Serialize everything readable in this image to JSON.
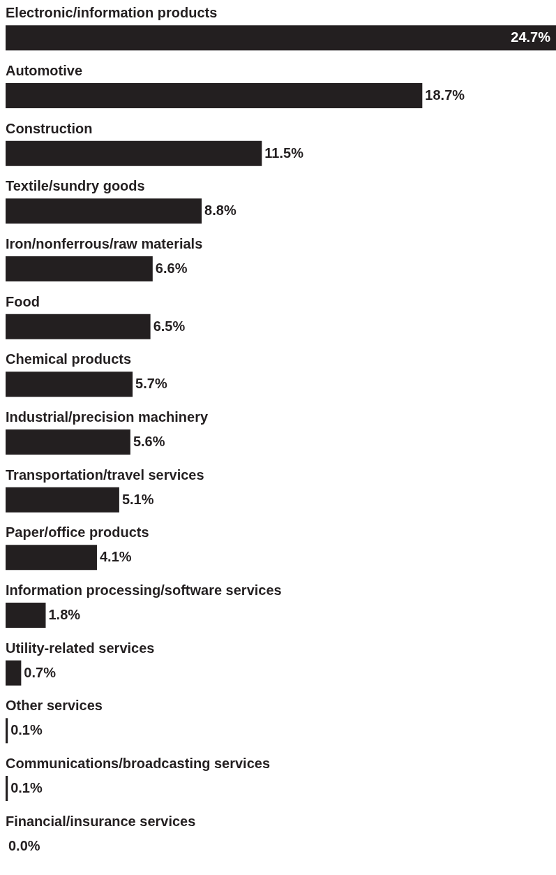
{
  "chart_data": {
    "type": "bar",
    "orientation": "horizontal",
    "color": "#231f20",
    "categories": [
      "Electronic/information products",
      "Automotive",
      "Construction",
      "Textile/sundry goods",
      "Iron/nonferrous/raw materials",
      "Food",
      "Chemical products",
      "Industrial/precision machinery",
      "Transportation/travel services",
      "Paper/office products",
      "Information processing/software services",
      "Utility-related services",
      "Other services",
      "Communications/broadcasting services",
      "Financial/insurance services"
    ],
    "values": [
      24.7,
      18.7,
      11.5,
      8.8,
      6.6,
      6.5,
      5.7,
      5.6,
      5.1,
      4.1,
      1.8,
      0.7,
      0.1,
      0.1,
      0.0
    ],
    "value_labels": [
      "24.7%",
      "18.7%",
      "11.5%",
      "8.8%",
      "6.6%",
      "6.5%",
      "5.7%",
      "5.6%",
      "5.1%",
      "4.1%",
      "1.8%",
      "0.7%",
      "0.1%",
      "0.1%",
      "0.0%"
    ]
  }
}
